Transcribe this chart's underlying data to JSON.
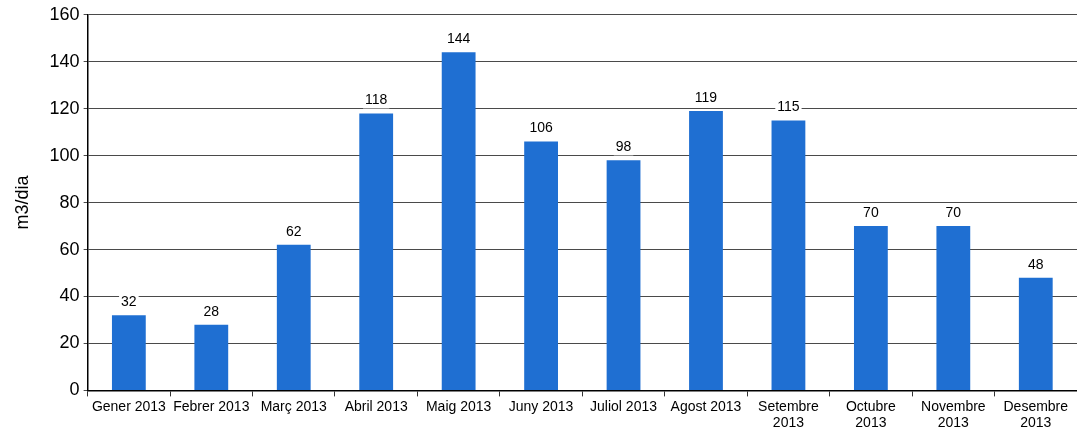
{
  "chart_data": {
    "type": "bar",
    "ylabel": "m3/dia",
    "categories": [
      "Gener 2013",
      "Febrer 2013",
      "Març 2013",
      "Abril 2013",
      "Maig 2013",
      "Juny 2013",
      "Juliol 2013",
      "Agost 2013",
      "Setembre 2013",
      "Octubre 2013",
      "Novembre 2013",
      "Desembre 2013"
    ],
    "values": [
      32,
      28,
      62,
      118,
      144,
      106,
      98,
      119,
      115,
      70,
      70,
      48
    ],
    "color": "#1f6fd2",
    "ylim": [
      0,
      160
    ],
    "yticks": [
      0,
      20,
      40,
      60,
      80,
      100,
      120,
      140,
      160
    ],
    "grid": "y",
    "data_labels": true
  }
}
